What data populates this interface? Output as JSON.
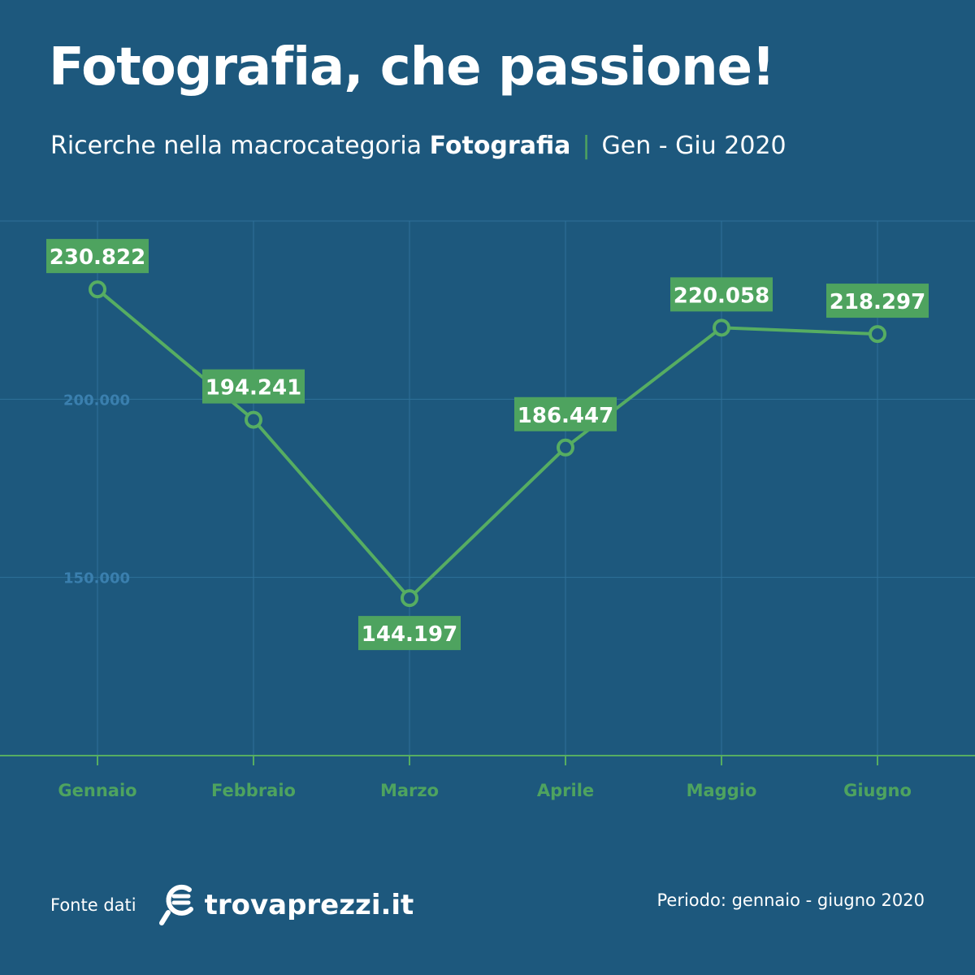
{
  "header": {
    "title": "Fotografia, che passione!",
    "subtitle_prefix": "Ricerche nella macrocategoria ",
    "subtitle_bold": "Fotografia",
    "subtitle_separator": "|",
    "subtitle_period": "Gen - Giu 2020"
  },
  "footer": {
    "source_label": "Fonte dati",
    "brand_name": "trovaprezzi.it",
    "period_note": "Periodo: gennaio - giugno 2020"
  },
  "colors": {
    "background": "#1d587d",
    "line": "#56ad62",
    "grid": "#2f7199",
    "tick_label": "#3a7fae",
    "month_label": "#4ea35f",
    "label_box": "#4ea35f"
  },
  "chart_data": {
    "type": "line",
    "title": "Fotografia, che passione!",
    "categories": [
      "Gennaio",
      "Febbraio",
      "Marzo",
      "Aprile",
      "Maggio",
      "Giugno"
    ],
    "series": [
      {
        "values": [
          230822,
          194241,
          144197,
          186447,
          220058,
          218297
        ],
        "labels": [
          "230.822",
          "194.241",
          "144.197",
          "186.447",
          "220.058",
          "218.297"
        ]
      }
    ],
    "yticks": [
      150000,
      200000
    ],
    "ytick_labels": [
      "150.000",
      "200.000"
    ],
    "ylim": [
      100000,
      250000
    ],
    "grid": true
  }
}
